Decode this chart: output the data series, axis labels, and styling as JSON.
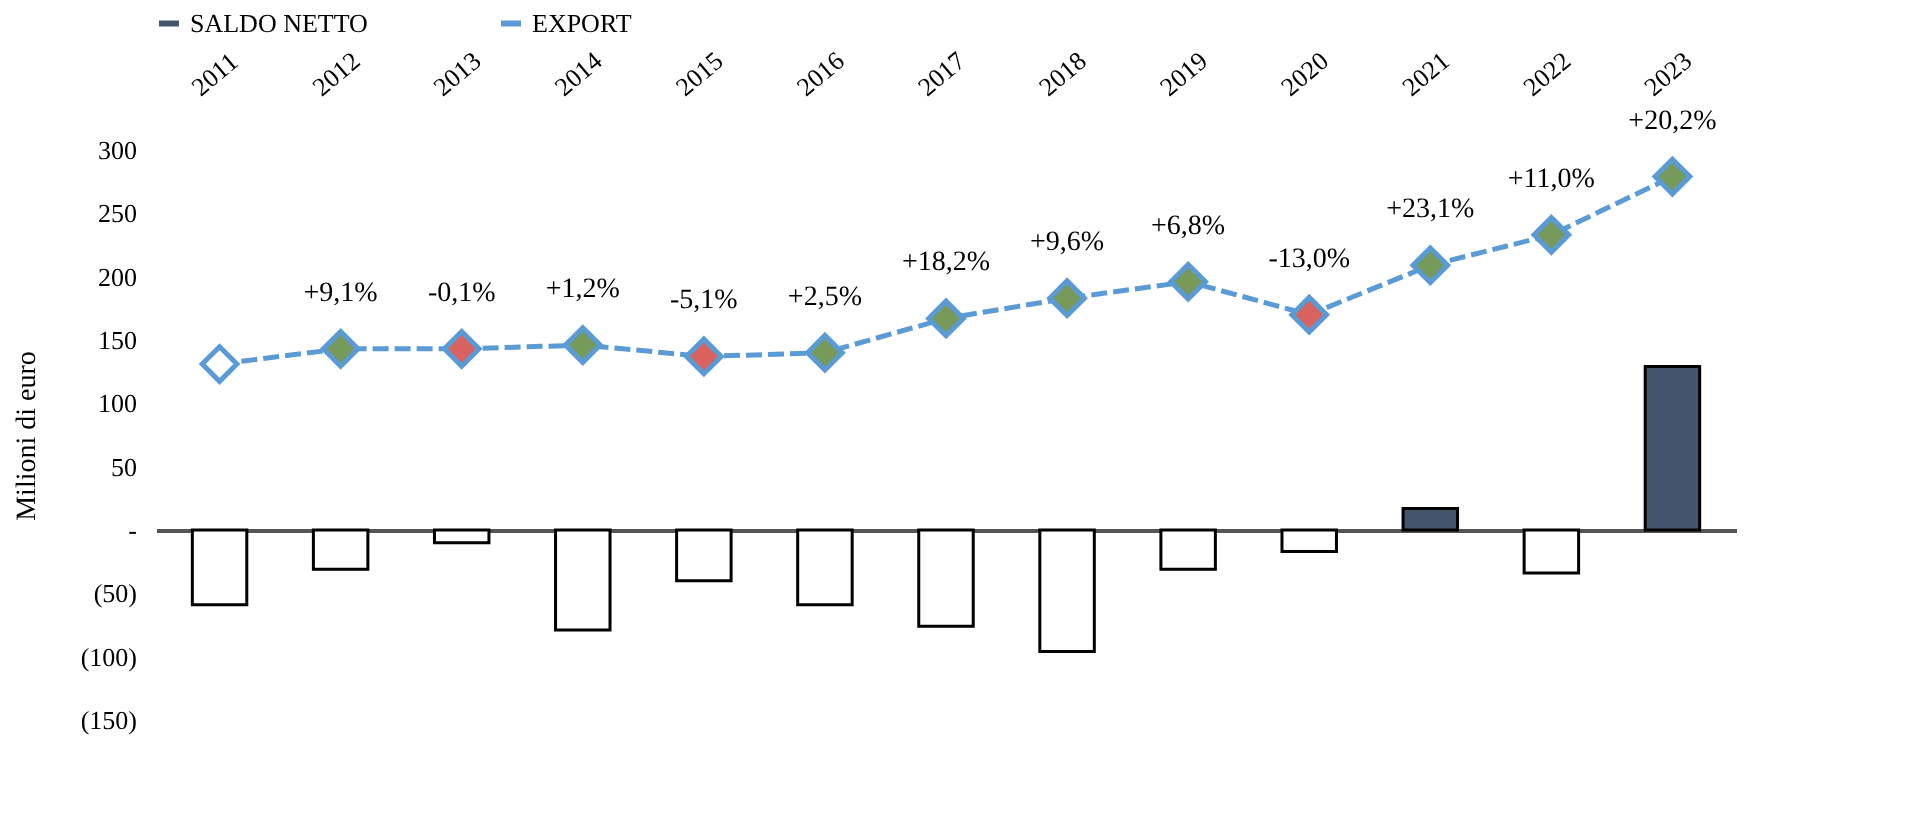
{
  "chart_data": {
    "type": "bar",
    "ylabel": "Milioni di euro",
    "legend": "top",
    "categories": [
      "2011",
      "2012",
      "2013",
      "2014",
      "2015",
      "2016",
      "2017",
      "2018",
      "2019",
      "2020",
      "2021",
      "2022",
      "2023"
    ],
    "series": [
      {
        "name": "SALDO NETTO",
        "color": "#44546a",
        "colors": [
          "#ffffff",
          "#ffffff",
          "#ffffff",
          "#ffffff",
          "#ffffff",
          "#ffffff",
          "#ffffff",
          "#ffffff",
          "#ffffff",
          "#ffffff",
          "#44546a",
          "#ffffff",
          "#44546a"
        ],
        "values": [
          -59,
          -31,
          -10,
          -79,
          -40,
          -59,
          -76,
          -96,
          -31,
          -17,
          17,
          -34,
          129
        ]
      },
      {
        "name": "EXPORT",
        "type": "line",
        "color": "#5b9bd5",
        "line_style": "dashed",
        "marker": "diamond",
        "colors": [
          "#ffffff",
          "#77995a",
          "#d9625e",
          "#77995a",
          "#d9625e",
          "#77995a",
          "#77995a",
          "#77995a",
          "#77995a",
          "#d9625e",
          "#77995a",
          "#77995a",
          "#77995a"
        ],
        "values": [
          131,
          143,
          143,
          146,
          137,
          140,
          167,
          183,
          196,
          170,
          209,
          233,
          279
        ]
      }
    ],
    "annotations": [
      {
        "text": "+9,1%",
        "x": "2012",
        "y": 143
      },
      {
        "text": "-0,1%",
        "x": "2013",
        "y": 143
      },
      {
        "text": "+1,2%",
        "x": "2014",
        "y": 146
      },
      {
        "text": "-5,1%",
        "x": "2015",
        "y": 137
      },
      {
        "text": "+2,5%",
        "x": "2016",
        "y": 140
      },
      {
        "text": "+18,2%",
        "x": "2017",
        "y": 167
      },
      {
        "text": "+9,6%",
        "x": "2018",
        "y": 183
      },
      {
        "text": "+6,8%",
        "x": "2019",
        "y": 196
      },
      {
        "text": "-13,0%",
        "x": "2020",
        "y": 170
      },
      {
        "text": "+23,1%",
        "x": "2021",
        "y": 209
      },
      {
        "text": "+11,0%",
        "x": "2022",
        "y": 233
      },
      {
        "text": "+20,2%",
        "x": "2023",
        "y": 279
      }
    ],
    "ylim": [
      -150,
      300
    ],
    "yticks": [
      {
        "value": -150,
        "label": "(150)"
      },
      {
        "value": -100,
        "label": "(100)"
      },
      {
        "value": -50,
        "label": "(50)"
      },
      {
        "value": 0,
        "label": "-"
      },
      50,
      100,
      150,
      200,
      250,
      300
    ]
  }
}
